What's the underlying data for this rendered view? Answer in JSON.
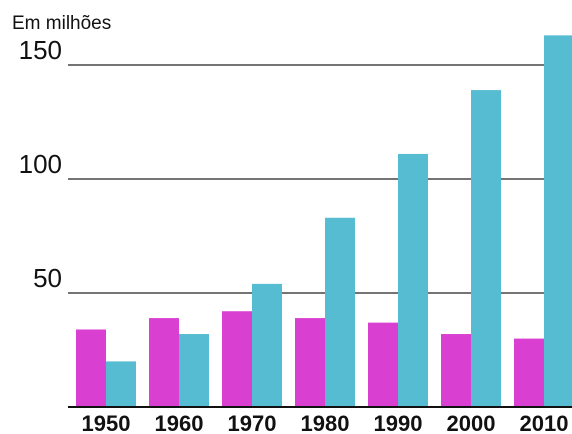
{
  "chart_data": {
    "type": "bar",
    "unit_label": "Em milhões",
    "categories": [
      "1950",
      "1960",
      "1970",
      "1980",
      "1990",
      "2000",
      "2010"
    ],
    "series": [
      {
        "values": [
          34,
          39,
          42,
          39,
          37,
          32,
          30
        ]
      },
      {
        "values": [
          20,
          32,
          54,
          83,
          111,
          139,
          163
        ]
      }
    ],
    "colors": [
      "#d93fd0",
      "#56bcd2"
    ],
    "yticks": [
      "50",
      "100",
      "150"
    ],
    "ylim": [
      0,
      165
    ],
    "grid": true
  }
}
